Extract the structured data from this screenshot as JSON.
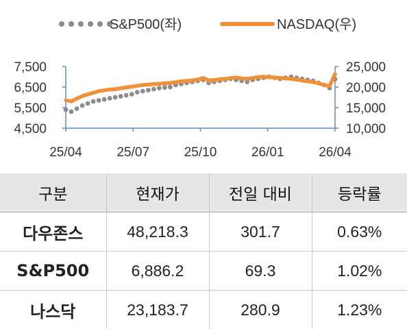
{
  "chart_data": {
    "type": "line",
    "title": "",
    "legend_position": "top",
    "x_ticks": [
      "25/04",
      "25/07",
      "25/10",
      "26/01",
      "26/04"
    ],
    "y_left_ticks": [
      "7,500",
      "6,500",
      "5,500",
      "4,500"
    ],
    "y_left_range": [
      4500,
      7500
    ],
    "y_right_ticks": [
      "25,000",
      "20,000",
      "15,000",
      "10,000"
    ],
    "y_right_range": [
      10000,
      25000
    ],
    "series": [
      {
        "name": "S&P500(좌)",
        "axis": "left",
        "style": "dotted",
        "color": "#8c8c8c",
        "values": [
          5400,
          5300,
          5450,
          5600,
          5700,
          5800,
          5850,
          5900,
          5950,
          6000,
          6050,
          6100,
          6150,
          6250,
          6300,
          6350,
          6400,
          6450,
          6480,
          6500,
          6600,
          6650,
          6700,
          6750,
          6800,
          6850,
          6700,
          6750,
          6800,
          6850,
          6900,
          6850,
          6800,
          6750,
          6850,
          6900,
          6950,
          7000,
          6950,
          6900,
          6950,
          7000,
          6950,
          6900,
          6850,
          6800,
          6700,
          6600,
          6450,
          6886
        ]
      },
      {
        "name": "NASDAQ(우)",
        "axis": "right",
        "style": "solid",
        "color": "#f0913a",
        "values": [
          16800,
          16500,
          17200,
          17800,
          18200,
          18600,
          19000,
          19200,
          19400,
          19500,
          19700,
          19900,
          20100,
          20300,
          20500,
          20600,
          20700,
          20800,
          20900,
          21000,
          21200,
          21400,
          21500,
          21600,
          21800,
          22200,
          21600,
          21700,
          21900,
          22000,
          22200,
          22300,
          22100,
          22000,
          22200,
          22400,
          22500,
          22400,
          22300,
          22200,
          22100,
          22000,
          21800,
          21600,
          21400,
          21200,
          20900,
          20500,
          20200,
          23184
        ]
      }
    ]
  },
  "table": {
    "headers": [
      "구분",
      "현재가",
      "전일 대비",
      "등락률"
    ],
    "rows": [
      {
        "name": "다우존스",
        "price": "48,218.3",
        "change": "301.7",
        "pct": "0.63%"
      },
      {
        "name": "S&P500",
        "price": "6,886.2",
        "change": "69.3",
        "pct": "1.02%"
      },
      {
        "name": "나스닥",
        "price": "23,183.7",
        "change": "280.9",
        "pct": "1.23%"
      }
    ]
  }
}
